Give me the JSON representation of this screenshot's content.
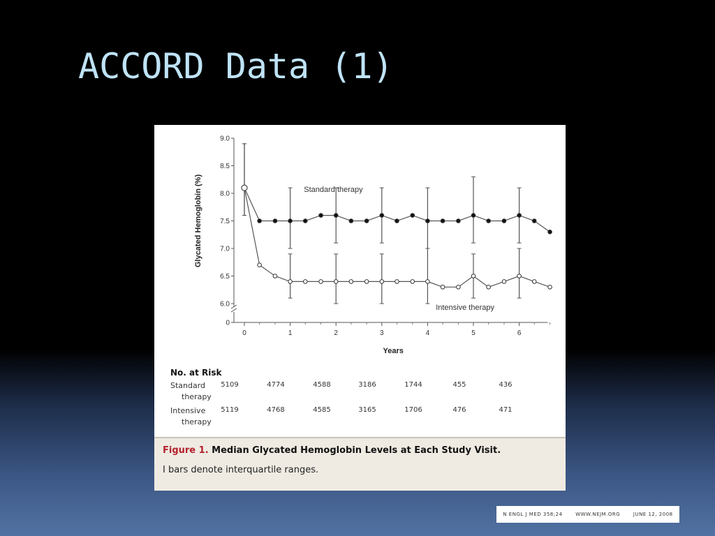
{
  "slide": {
    "title": "ACCORD Data (1)"
  },
  "figure": {
    "caption_label": "Figure 1.",
    "caption_title": "Median Glycated Hemoglobin Levels at Each Study Visit.",
    "caption_note": "I bars denote interquartile ranges."
  },
  "risk_table": {
    "header": "No. at Risk",
    "rows": [
      {
        "label_line1": "Standard",
        "label_line2": "therapy",
        "values": [
          "5109",
          "4774",
          "4588",
          "3186",
          "1744",
          "455",
          "436"
        ]
      },
      {
        "label_line1": "Intensive",
        "label_line2": "therapy",
        "values": [
          "5119",
          "4768",
          "4585",
          "3165",
          "1706",
          "476",
          "471"
        ]
      }
    ]
  },
  "citation": {
    "journal": "N ENGL J MED 358;24",
    "site": "WWW.NEJM.ORG",
    "date": "JUNE 12, 2008"
  },
  "colors": {
    "title": "#bfe3f6",
    "caption_label": "#b3202a",
    "series_line": "#555555"
  },
  "chart_data": {
    "type": "line",
    "xlabel": "Years",
    "ylabel": "Glycated Hemoglobin (%)",
    "xlim": [
      -0.1,
      6.7
    ],
    "ylim_break": true,
    "y_ticks": [
      "0",
      "6.0",
      "6.5",
      "7.0",
      "7.5",
      "8.0",
      "8.5",
      "9.0"
    ],
    "x_ticks": [
      "0",
      "1",
      "2",
      "3",
      "4",
      "5",
      "6"
    ],
    "grid": false,
    "legend": "inline labels",
    "series": [
      {
        "name": "Standard therapy",
        "marker": "filled-circle",
        "x": [
          0,
          0.33,
          0.67,
          1,
          1.33,
          1.67,
          2,
          2.33,
          2.67,
          3,
          3.33,
          3.67,
          4,
          4.33,
          4.67,
          5,
          5.33,
          5.67,
          6,
          6.33,
          6.67
        ],
        "y": [
          8.1,
          7.5,
          7.5,
          7.5,
          7.5,
          7.6,
          7.6,
          7.5,
          7.5,
          7.6,
          7.5,
          7.6,
          7.5,
          7.5,
          7.5,
          7.6,
          7.5,
          7.5,
          7.6,
          7.5,
          7.3
        ],
        "iqr": [
          {
            "x": 0,
            "low": 7.6,
            "high": 8.9
          },
          {
            "x": 1,
            "low": 7.0,
            "high": 8.1
          },
          {
            "x": 2,
            "low": 7.1,
            "high": 8.1
          },
          {
            "x": 3,
            "low": 7.1,
            "high": 8.1
          },
          {
            "x": 4,
            "low": 7.0,
            "high": 8.1
          },
          {
            "x": 5,
            "low": 7.1,
            "high": 8.3
          },
          {
            "x": 6,
            "low": 7.1,
            "high": 8.1
          }
        ]
      },
      {
        "name": "Intensive therapy",
        "marker": "open-circle",
        "x": [
          0,
          0.33,
          0.67,
          1,
          1.33,
          1.67,
          2,
          2.33,
          2.67,
          3,
          3.33,
          3.67,
          4,
          4.33,
          4.67,
          5,
          5.33,
          5.67,
          6,
          6.33,
          6.67
        ],
        "y": [
          8.1,
          6.7,
          6.5,
          6.4,
          6.4,
          6.4,
          6.4,
          6.4,
          6.4,
          6.4,
          6.4,
          6.4,
          6.4,
          6.3,
          6.3,
          6.5,
          6.3,
          6.4,
          6.5,
          6.4,
          6.3
        ],
        "iqr": [
          {
            "x": 0,
            "low": 7.6,
            "high": 8.9
          },
          {
            "x": 1,
            "low": 6.1,
            "high": 6.9
          },
          {
            "x": 2,
            "low": 6.0,
            "high": 6.9
          },
          {
            "x": 3,
            "low": 6.0,
            "high": 6.9
          },
          {
            "x": 4,
            "low": 6.0,
            "high": 7.0
          },
          {
            "x": 5,
            "low": 6.1,
            "high": 6.9
          },
          {
            "x": 6,
            "low": 6.1,
            "high": 7.0
          }
        ]
      }
    ]
  }
}
